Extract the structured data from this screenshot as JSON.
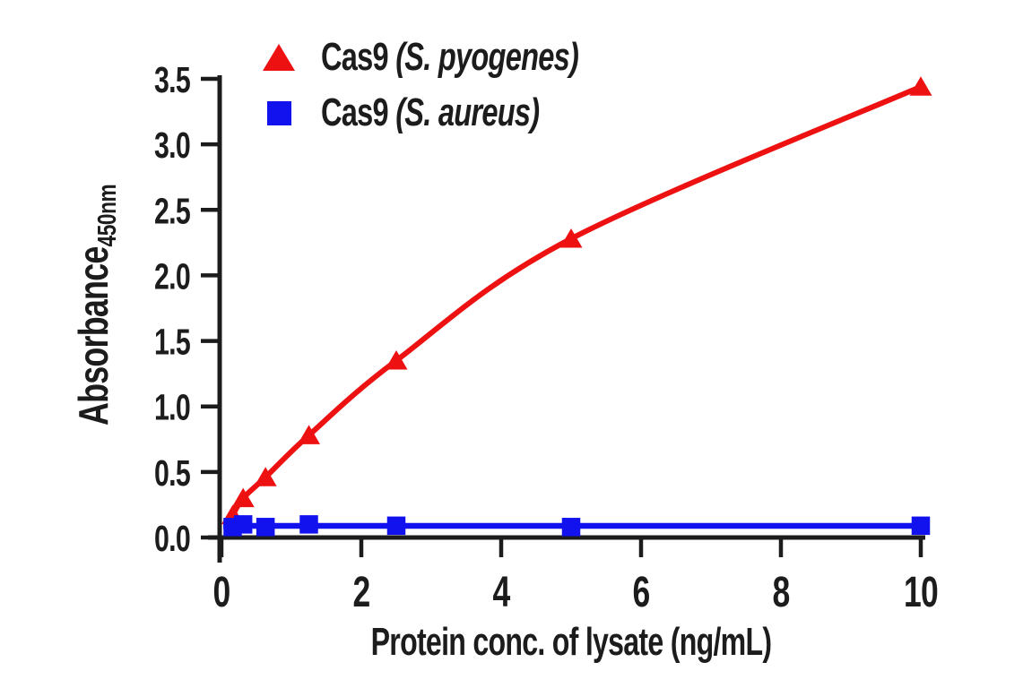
{
  "figure": {
    "background": "#ffffff",
    "text_color": "#1c1c1c"
  },
  "legend": {
    "position": "top-left",
    "items": [
      {
        "label_main": "Cas9 ",
        "label_species": "(S. pyogenes)",
        "marker": "triangle",
        "color": "#ee1111"
      },
      {
        "label_main": "Cas9 ",
        "label_species": "(S. aureus)",
        "marker": "square",
        "color": "#1212ee"
      }
    ]
  },
  "chart_data": {
    "type": "scatter",
    "title": "",
    "xlabel": "Protein conc. of lysate (ng/mL)",
    "ylabel": "Absorbance",
    "ylabel_subscript": "450nm",
    "xlim": [
      0,
      10
    ],
    "ylim": [
      0,
      3.5
    ],
    "x_ticks": [
      0,
      2,
      4,
      6,
      8,
      10
    ],
    "x_tick_labels": [
      "0",
      "2",
      "4",
      "6",
      "8",
      "10"
    ],
    "y_ticks": [
      0,
      0.5,
      1.0,
      1.5,
      2.0,
      2.5,
      3.0,
      3.5
    ],
    "y_tick_labels": [
      "0.0",
      "0.5",
      "1.0",
      "1.5",
      "2.0",
      "2.5",
      "3.0",
      "3.5"
    ],
    "grid": false,
    "axis_color": "#1c1c1c",
    "legend_position": "top-left inside",
    "series": [
      {
        "name": "Cas9 (S. pyogenes)",
        "marker": "triangle",
        "color": "#ee1111",
        "line_style": "smooth",
        "x": [
          0.16,
          0.31,
          0.63,
          1.25,
          2.5,
          5,
          10
        ],
        "y": [
          0.17,
          0.3,
          0.46,
          0.78,
          1.35,
          2.28,
          3.44
        ]
      },
      {
        "name": "Cas9 (S. aureus)",
        "marker": "square",
        "color": "#1212ee",
        "line_style": "straight",
        "x": [
          0.16,
          0.31,
          0.63,
          1.25,
          2.5,
          5,
          10
        ],
        "y": [
          0.08,
          0.1,
          0.08,
          0.1,
          0.09,
          0.08,
          0.09
        ]
      }
    ]
  }
}
